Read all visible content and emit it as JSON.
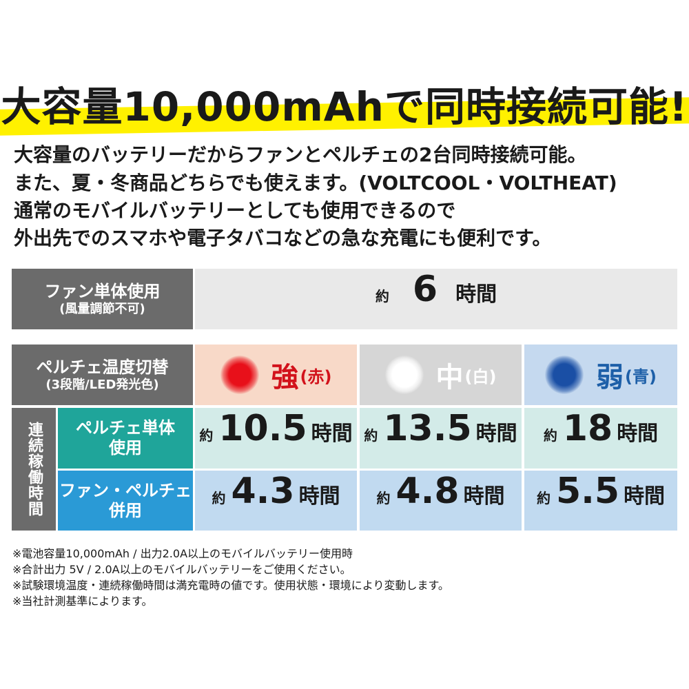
{
  "header": {
    "title": "大容量10,000mAhで同時接続可能!"
  },
  "description": [
    "大容量のバッテリーだからファンとペルチェの2台同時接続可能。",
    "また、夏・冬商品どちらでも使えます。(VOLTCOOL・VOLTHEAT)",
    "通常のモバイルバッテリーとしても使用できるので",
    "外出先でのスマホや電子タバコなどの急な充電にも便利です。"
  ],
  "table": {
    "fan_only": {
      "label": "ファン単体使用",
      "sublabel": "(風量調節不可)",
      "prefix": "約",
      "hours": 6,
      "unit": "時間"
    },
    "peltier_header": {
      "label": "ペルチェ温度切替",
      "sublabel": "(3段階/LED発光色)",
      "levels": [
        {
          "name": "強",
          "color_name": "(赤)"
        },
        {
          "name": "中",
          "color_name": "(白)"
        },
        {
          "name": "弱",
          "color_name": "(青)"
        }
      ]
    },
    "side_label": "連続稼働時間",
    "rows": [
      {
        "label": [
          "ペルチェ単体",
          "使用"
        ],
        "cells": [
          {
            "prefix": "約",
            "hours": 10.5,
            "unit": "時間"
          },
          {
            "prefix": "約",
            "hours": 13.5,
            "unit": "時間"
          },
          {
            "prefix": "約",
            "hours": 18,
            "unit": "時間"
          }
        ]
      },
      {
        "label": [
          "ファン・ペルチェ",
          "併用"
        ],
        "cells": [
          {
            "prefix": "約",
            "hours": 4.3,
            "unit": "時間"
          },
          {
            "prefix": "約",
            "hours": 4.8,
            "unit": "時間"
          },
          {
            "prefix": "約",
            "hours": 5.5,
            "unit": "時間"
          }
        ]
      }
    ]
  },
  "notes": [
    "※電池容量10,000mAh / 出力2.0A以上のモバイルバッテリー使用時",
    "※合計出力 5V / 2.0A以上のモバイルバッテリーをご使用ください。",
    "※試験環境温度・連続稼働時間は満充電時の値です。使用状態・環境により変動します。",
    "※当社計測基準によります。"
  ]
}
